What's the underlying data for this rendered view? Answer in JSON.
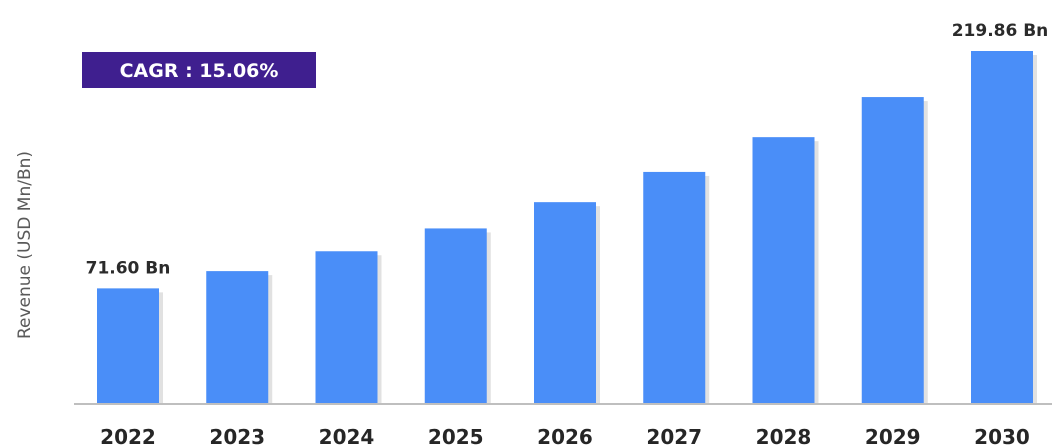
{
  "chart_data": {
    "type": "bar",
    "title": "",
    "xlabel": "",
    "ylabel": "Revenue (USD Mn/Bn)",
    "categories": [
      "2022",
      "2023",
      "2024",
      "2025",
      "2026",
      "2027",
      "2028",
      "2029",
      "2030"
    ],
    "values": [
      71.6,
      82.38,
      94.78,
      109.04,
      125.45,
      144.33,
      166.05,
      191.09,
      219.86
    ],
    "ylim": [
      0,
      235
    ],
    "grid": false,
    "legend": "none",
    "bar_color": "#4a8ef8",
    "data_labels": [
      {
        "category": "2022",
        "text": "71.60 Bn"
      },
      {
        "category": "2030",
        "text": "219.86 Bn"
      }
    ],
    "annotation": {
      "text": "CAGR : 15.06%",
      "box_color": "#3f1f8f",
      "text_color": "#ffffff"
    }
  }
}
